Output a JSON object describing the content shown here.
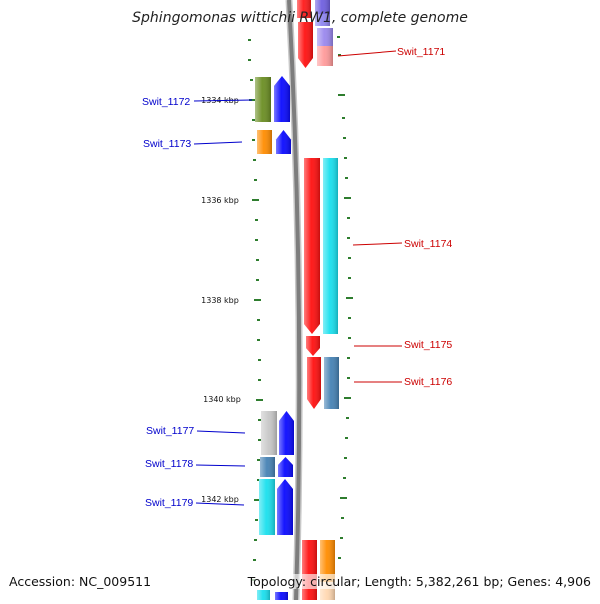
{
  "title": "Sphingomonas wittichii RW1, complete genome",
  "footer": {
    "accession": "Accession: NC_009511",
    "topology": "Topology: circular; Length: 5,382,261 bp; Genes: 4,906"
  },
  "colors": {
    "backbone": "#7d7d7d",
    "forward_label": "#0000cc",
    "reverse_label": "#cc0000",
    "tick": "#2e7d2e"
  },
  "scale": {
    "unit": "kbp",
    "labels": [
      {
        "kbp": 1334,
        "text": "1334 kbp"
      },
      {
        "kbp": 1336,
        "text": "1336 kbp"
      },
      {
        "kbp": 1338,
        "text": "1338 kbp"
      },
      {
        "kbp": 1340,
        "text": "1340 kbp"
      },
      {
        "kbp": 1342,
        "text": "1342 kbp"
      }
    ]
  },
  "genes": [
    {
      "label": "Swit_1171",
      "strand": "reverse"
    },
    {
      "label": "Swit_1172",
      "strand": "forward"
    },
    {
      "label": "Swit_1173",
      "strand": "forward"
    },
    {
      "label": "Swit_1174",
      "strand": "reverse"
    },
    {
      "label": "Swit_1175",
      "strand": "reverse"
    },
    {
      "label": "Swit_1176",
      "strand": "reverse"
    },
    {
      "label": "Swit_1177",
      "strand": "forward"
    },
    {
      "label": "Swit_1178",
      "strand": "forward"
    },
    {
      "label": "Swit_1179",
      "strand": "forward"
    }
  ]
}
